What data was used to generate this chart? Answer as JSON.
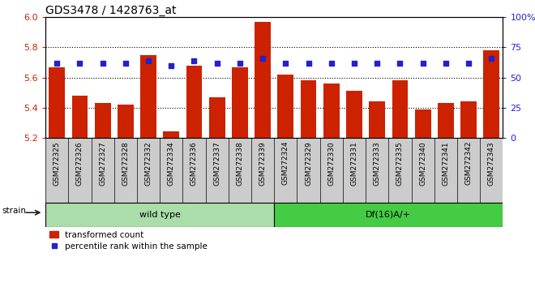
{
  "title": "GDS3478 / 1428763_at",
  "samples": [
    "GSM272325",
    "GSM272326",
    "GSM272327",
    "GSM272328",
    "GSM272332",
    "GSM272334",
    "GSM272336",
    "GSM272337",
    "GSM272338",
    "GSM272339",
    "GSM272324",
    "GSM272329",
    "GSM272330",
    "GSM272331",
    "GSM272333",
    "GSM272335",
    "GSM272340",
    "GSM272341",
    "GSM272342",
    "GSM272343"
  ],
  "bar_values": [
    5.67,
    5.48,
    5.43,
    5.42,
    5.75,
    5.24,
    5.68,
    5.47,
    5.67,
    5.97,
    5.62,
    5.58,
    5.56,
    5.51,
    5.44,
    5.58,
    5.39,
    5.43,
    5.44,
    5.78
  ],
  "percentile_values": [
    62,
    62,
    62,
    62,
    64,
    60,
    64,
    62,
    62,
    66,
    62,
    62,
    62,
    62,
    62,
    62,
    62,
    62,
    62,
    66
  ],
  "wild_type_count": 10,
  "df_count": 10,
  "group1_label": "wild type",
  "group2_label": "Df(16)A/+",
  "strain_label": "strain",
  "y_min": 5.2,
  "y_max": 6.0,
  "y_ticks": [
    5.2,
    5.4,
    5.6,
    5.8,
    6.0
  ],
  "right_ticks": [
    0,
    25,
    50,
    75,
    100
  ],
  "right_labels": [
    "0",
    "25",
    "50",
    "75",
    "100%"
  ],
  "bar_color": "#cc2200",
  "dot_color": "#2222cc",
  "wt_bg": "#aaddaa",
  "df_bg": "#44cc44",
  "tick_bg": "#cccccc",
  "dotted_lines": [
    5.4,
    5.6,
    5.8
  ],
  "legend_bar_label": "transformed count",
  "legend_dot_label": "percentile rank within the sample",
  "title_fontsize": 10,
  "tick_fontsize": 6.5,
  "bar_width": 0.7
}
